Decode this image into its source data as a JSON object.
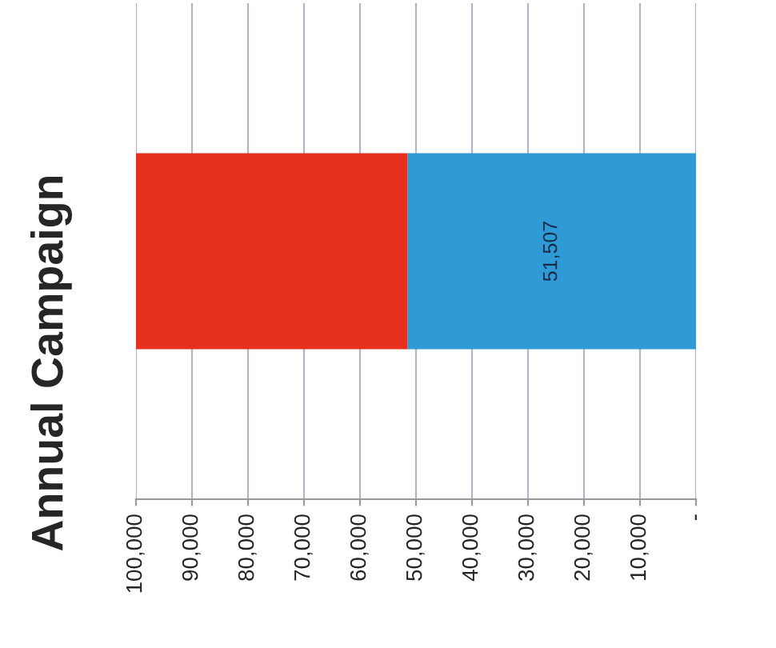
{
  "chart_data": {
    "type": "bar",
    "title": "Annual Campaign",
    "orientation": "horizontal",
    "stacked": true,
    "categories": [
      null
    ],
    "series": [
      {
        "color": "#2e9ad6",
        "values": [
          51507
        ],
        "value_labels": [
          "51,507"
        ]
      },
      {
        "color": "#e8301e",
        "values": [
          48500
        ]
      }
    ],
    "xlim": [
      100000,
      0
    ],
    "xticks": [
      {
        "value": 0,
        "label": "-"
      },
      {
        "value": 10000,
        "label": "10,000"
      },
      {
        "value": 20000,
        "label": "20,000"
      },
      {
        "value": 30000,
        "label": "30,000"
      },
      {
        "value": 40000,
        "label": "40,000"
      },
      {
        "value": 50000,
        "label": "50,000"
      },
      {
        "value": 60000,
        "label": "60,000"
      },
      {
        "value": 70000,
        "label": "70,000"
      },
      {
        "value": 80000,
        "label": "80,000"
      },
      {
        "value": 90000,
        "label": "90,000"
      },
      {
        "value": 100000,
        "label": "100,000"
      }
    ],
    "grid": "x",
    "tick_labels": "x"
  }
}
